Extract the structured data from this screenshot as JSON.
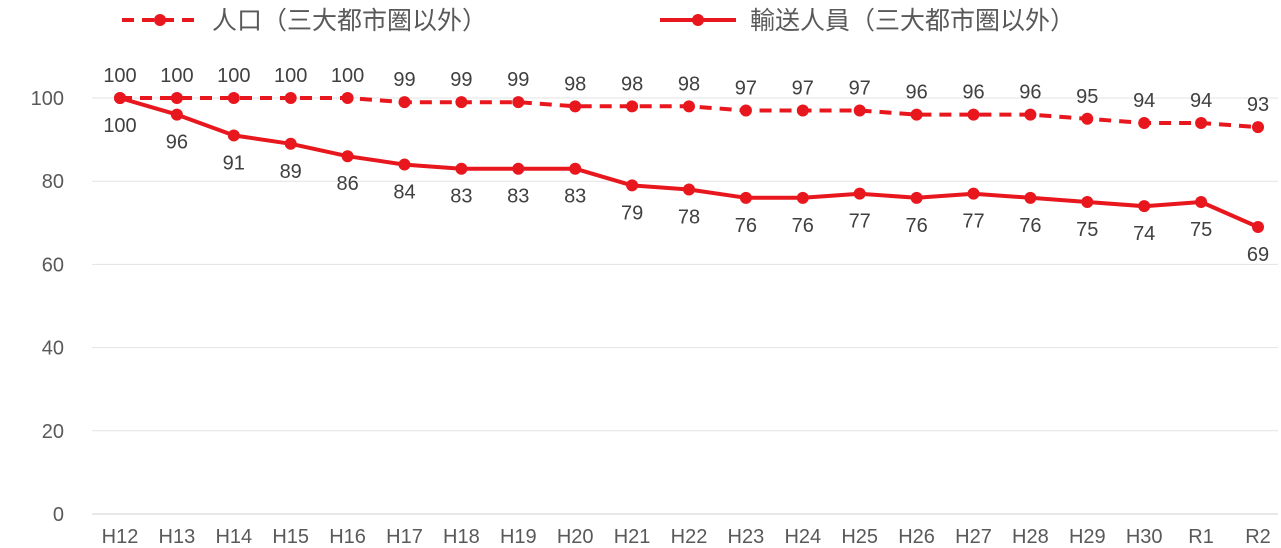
{
  "chart_data": {
    "type": "line",
    "title": "",
    "xlabel": "",
    "ylabel": "",
    "ylim": [
      0,
      100
    ],
    "yticks": [
      0,
      20,
      40,
      60,
      80,
      100
    ],
    "grid": true,
    "legend": "top",
    "categories": [
      "H12",
      "H13",
      "H14",
      "H15",
      "H16",
      "H17",
      "H18",
      "H19",
      "H20",
      "H21",
      "H22",
      "H23",
      "H24",
      "H25",
      "H26",
      "H27",
      "H28",
      "H29",
      "H30",
      "R1",
      "R2"
    ],
    "series": [
      {
        "name": "人口（三大都市圏以外）",
        "style": "dashed",
        "color": "#e8171e",
        "values": [
          100,
          100,
          100,
          100,
          100,
          99,
          99,
          99,
          98,
          98,
          98,
          97,
          97,
          97,
          96,
          96,
          96,
          95,
          94,
          94,
          93
        ]
      },
      {
        "name": "輸送人員（三大都市圏以外）",
        "style": "solid",
        "color": "#e8171e",
        "values": [
          100,
          96,
          91,
          89,
          86,
          84,
          83,
          83,
          83,
          79,
          78,
          76,
          76,
          77,
          76,
          77,
          76,
          75,
          74,
          75,
          69
        ]
      }
    ]
  }
}
